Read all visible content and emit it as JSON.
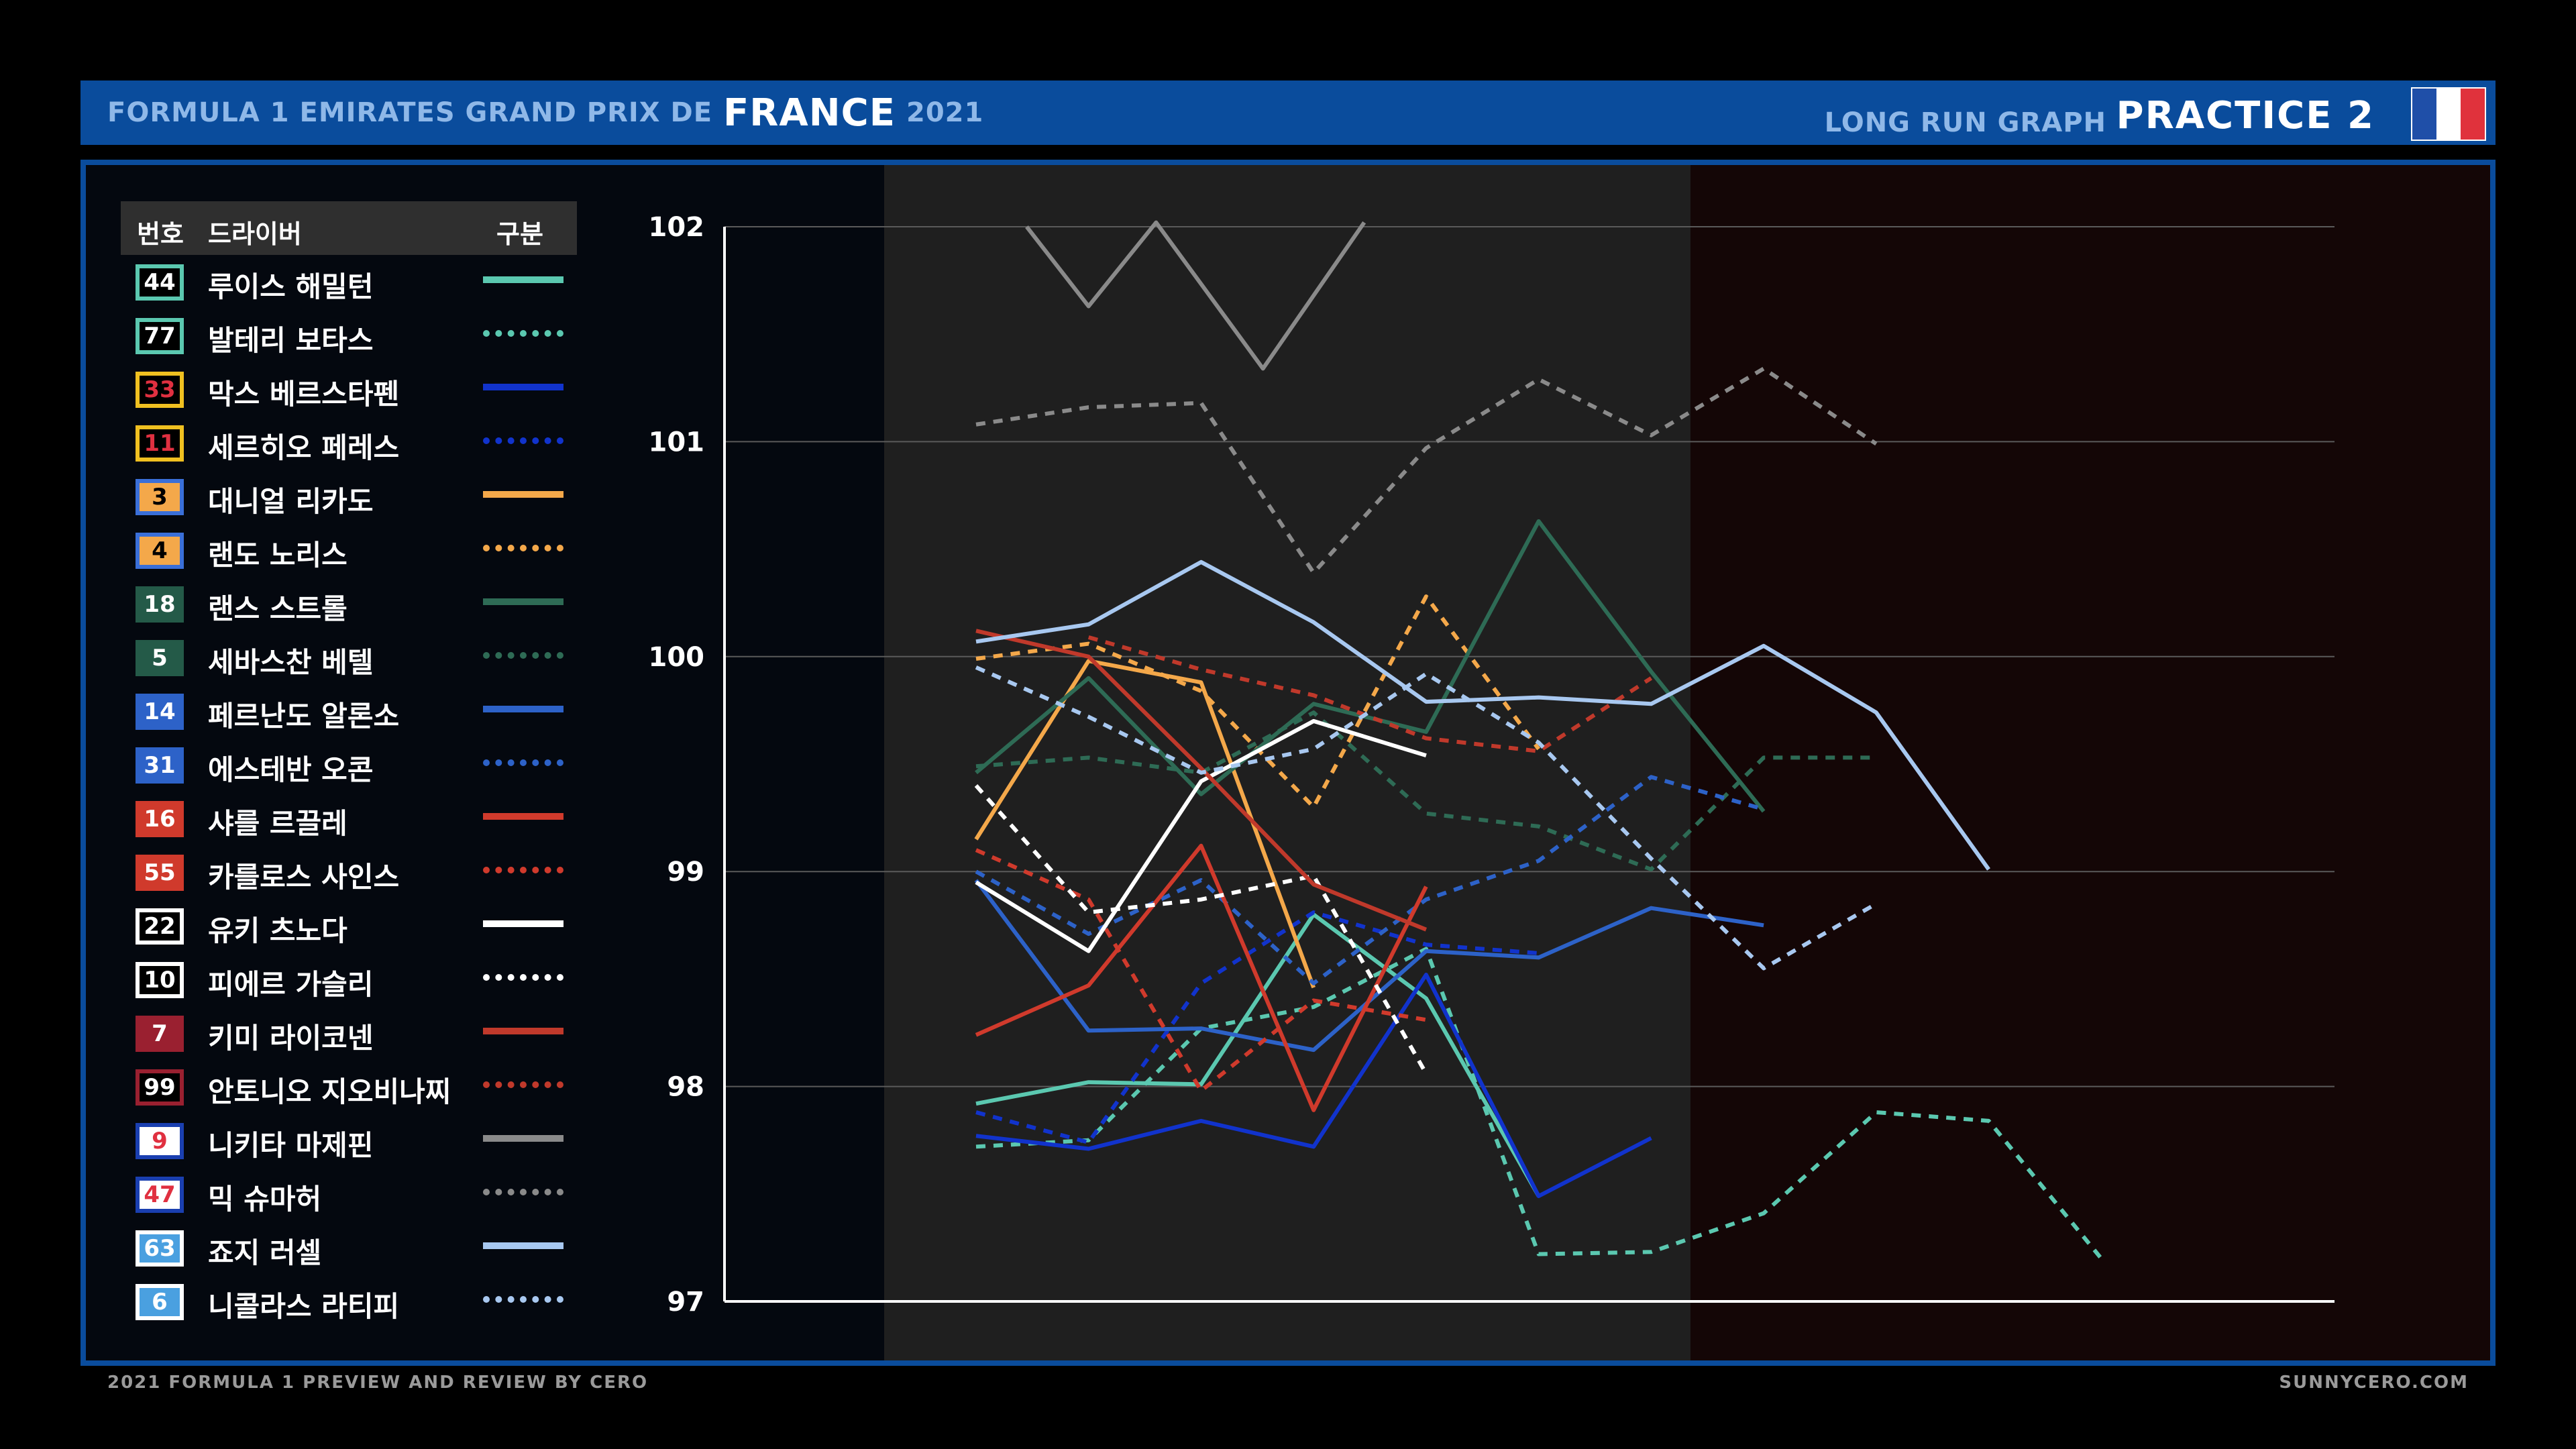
{
  "header": {
    "event_prefix": "FORMULA 1 EMIRATES GRAND PRIX DE",
    "event_main": "FRANCE",
    "event_year": "2021",
    "subtitle": "LONG RUN GRAPH",
    "session": "PRACTICE 2",
    "flag_colors": [
      "#1f4fa8",
      "#ffffff",
      "#e0323c"
    ]
  },
  "legend": {
    "col_number": "번호",
    "col_driver": "드라이버",
    "col_style": "구분"
  },
  "footer": {
    "left": "2021 FORMULA 1 PREVIEW AND REVIEW BY CERO",
    "right": "SUNNYCERO.COM"
  },
  "chart_data": {
    "type": "line",
    "title": "LONG RUN GRAPH",
    "xlabel": "",
    "ylabel": "",
    "ylim": [
      97,
      102
    ],
    "y_ticks": [
      "102",
      "101",
      "100",
      "99",
      "98",
      "97"
    ],
    "grid": true,
    "x_range": [
      1,
      12
    ],
    "series": [
      {
        "number": "44",
        "name": "루이스 해밀턴",
        "color": "#5bc8b0",
        "dashed": false,
        "badge_fill": "#000000",
        "badge_border": "#5bc8b0",
        "badge_text": "#ffffff",
        "x": [
          1,
          2,
          3,
          4,
          5,
          6
        ],
        "y": [
          97.92,
          98.02,
          98.01,
          98.8,
          98.41,
          97.49
        ]
      },
      {
        "number": "77",
        "name": "발테리 보타스",
        "color": "#5bc8b0",
        "dashed": true,
        "badge_fill": "#000000",
        "badge_border": "#5bc8b0",
        "badge_text": "#ffffff",
        "x": [
          1,
          2,
          3,
          4,
          5,
          6,
          7,
          8,
          9,
          10,
          11
        ],
        "y": [
          97.72,
          97.75,
          98.27,
          98.37,
          98.64,
          97.22,
          97.23,
          97.41,
          97.88,
          97.84,
          97.2
        ]
      },
      {
        "number": "33",
        "name": "막스 베르스타펜",
        "color": "#1133cc",
        "dashed": false,
        "badge_fill": "#000000",
        "badge_border": "#f0c020",
        "badge_text": "#e03040",
        "x": [
          1,
          2,
          3,
          4,
          5,
          6,
          7
        ],
        "y": [
          97.77,
          97.71,
          97.84,
          97.72,
          98.52,
          97.49,
          97.76
        ]
      },
      {
        "number": "11",
        "name": "세르히오 페레스",
        "color": "#1133cc",
        "dashed": true,
        "badge_fill": "#000000",
        "badge_border": "#f0c020",
        "badge_text": "#e03040",
        "x": [
          1,
          2,
          3,
          4,
          5,
          6
        ],
        "y": [
          97.88,
          97.74,
          98.48,
          98.81,
          98.66,
          98.62
        ]
      },
      {
        "number": "3",
        "name": "대니얼 리카도",
        "color": "#f4a84a",
        "dashed": false,
        "badge_fill": "#f4a84a",
        "badge_border": "#3a6fd8",
        "badge_text": "#000000",
        "x": [
          1,
          2,
          3,
          4
        ],
        "y": [
          99.15,
          99.98,
          99.88,
          98.46
        ]
      },
      {
        "number": "4",
        "name": "랜도 노리스",
        "color": "#f4a84a",
        "dashed": true,
        "badge_fill": "#f4a84a",
        "badge_border": "#3a6fd8",
        "badge_text": "#000000",
        "x": [
          1,
          2,
          3,
          4,
          5,
          6
        ],
        "y": [
          99.99,
          100.06,
          99.84,
          99.3,
          100.28,
          99.57
        ]
      },
      {
        "number": "18",
        "name": "랜스 스트롤",
        "color": "#2e6b55",
        "dashed": false,
        "badge_fill": "#245a48",
        "badge_border": "#245a48",
        "badge_text": "#ffffff",
        "x": [
          1,
          2,
          3,
          4,
          5,
          6,
          7,
          8
        ],
        "y": [
          99.46,
          99.9,
          99.36,
          99.78,
          99.65,
          100.63,
          99.93,
          99.28
        ]
      },
      {
        "number": "5",
        "name": "세바스찬 베텔",
        "color": "#2e6b55",
        "dashed": true,
        "badge_fill": "#245a48",
        "badge_border": "#245a48",
        "badge_text": "#ffffff",
        "x": [
          1,
          2,
          3,
          4,
          5,
          6,
          7,
          8,
          9
        ],
        "y": [
          99.49,
          99.53,
          99.46,
          99.74,
          99.27,
          99.21,
          99.01,
          99.53,
          99.53
        ]
      },
      {
        "number": "14",
        "name": "페르난도 알론소",
        "color": "#2d62c8",
        "dashed": false,
        "badge_fill": "#2d62c8",
        "badge_border": "#2d62c8",
        "badge_text": "#ffffff",
        "x": [
          1,
          2,
          3,
          4,
          5,
          6,
          7,
          8
        ],
        "y": [
          98.96,
          98.26,
          98.27,
          98.17,
          98.63,
          98.6,
          98.83,
          98.75
        ]
      },
      {
        "number": "31",
        "name": "에스테반 오콘",
        "color": "#2d62c8",
        "dashed": true,
        "badge_fill": "#2d62c8",
        "badge_border": "#2d62c8",
        "badge_text": "#ffffff",
        "x": [
          1,
          2,
          3,
          4,
          5,
          6,
          7,
          8
        ],
        "y": [
          99.0,
          98.71,
          98.96,
          98.48,
          98.87,
          99.05,
          99.44,
          99.29
        ]
      },
      {
        "number": "16",
        "name": "샤를 르끌레",
        "color": "#d03a2c",
        "dashed": false,
        "badge_fill": "#d03a2c",
        "badge_border": "#d03a2c",
        "badge_text": "#ffffff",
        "x": [
          1,
          2,
          3,
          4,
          5
        ],
        "y": [
          98.24,
          98.47,
          99.12,
          97.89,
          98.93
        ]
      },
      {
        "number": "55",
        "name": "카를로스 사인스",
        "color": "#d03a2c",
        "dashed": true,
        "badge_fill": "#d03a2c",
        "badge_border": "#d03a2c",
        "badge_text": "#ffffff",
        "x": [
          1,
          2,
          3,
          4,
          5,
          6,
          7
        ],
        "y": [
          99.1,
          98.87,
          97.98,
          98.4,
          98.31,
          null,
          null
        ]
      },
      {
        "number": "22",
        "name": "유키 츠노다",
        "color": "#ffffff",
        "dashed": false,
        "badge_fill": "#000000",
        "badge_border": "#ffffff",
        "badge_text": "#ffffff",
        "x": [
          1,
          2,
          3,
          4,
          5
        ],
        "y": [
          98.95,
          98.63,
          99.42,
          99.7,
          99.54
        ]
      },
      {
        "number": "10",
        "name": "피에르 가슬리",
        "color": "#ffffff",
        "dashed": true,
        "badge_fill": "#000000",
        "badge_border": "#ffffff",
        "badge_text": "#ffffff",
        "x": [
          1,
          2,
          3,
          4,
          5
        ],
        "y": [
          99.4,
          98.81,
          98.87,
          98.98,
          98.06
        ]
      },
      {
        "number": "7",
        "name": "키미 라이코넨",
        "color": "#c0392b",
        "dashed": false,
        "badge_fill": "#9a2030",
        "badge_border": "#9a2030",
        "badge_text": "#ffffff",
        "x": [
          1,
          2,
          3,
          4,
          5
        ],
        "y": [
          100.12,
          100.0,
          99.48,
          98.94,
          98.73
        ]
      },
      {
        "number": "99",
        "name": "안토니오 지오비나찌",
        "color": "#c0392b",
        "dashed": true,
        "badge_fill": "#000000",
        "badge_border": "#9a2030",
        "badge_text": "#ffffff",
        "x": [
          2,
          3,
          4,
          5,
          6,
          7
        ],
        "y": [
          100.09,
          99.94,
          99.82,
          99.62,
          99.56,
          99.9
        ]
      },
      {
        "number": "9",
        "name": "니키타 마제핀",
        "color": "#8a8a8a",
        "dashed": false,
        "badge_fill": "#ffffff",
        "badge_border": "#1a3fb0",
        "badge_text": "#e03040",
        "x": [
          1.45,
          2,
          2.6,
          3.55,
          4.45
        ],
        "y": [
          102.0,
          101.63,
          102.02,
          101.34,
          102.02
        ]
      },
      {
        "number": "47",
        "name": "믹 슈마허",
        "color": "#8a8a8a",
        "dashed": true,
        "badge_fill": "#ffffff",
        "badge_border": "#1a3fb0",
        "badge_text": "#e03040",
        "x": [
          1,
          2,
          3,
          4,
          5,
          6,
          7,
          8,
          9
        ],
        "y": [
          101.08,
          101.16,
          101.18,
          100.39,
          100.97,
          101.29,
          101.03,
          101.34,
          100.99
        ]
      },
      {
        "number": "63",
        "name": "죠지 러셀",
        "color": "#a8c8f0",
        "dashed": false,
        "badge_fill": "#4aa0e0",
        "badge_border": "#ffffff",
        "badge_text": "#ffffff",
        "x": [
          1,
          2,
          3,
          4,
          5,
          6,
          7,
          8,
          9,
          10
        ],
        "y": [
          100.07,
          100.15,
          100.44,
          100.16,
          99.79,
          99.81,
          99.78,
          100.05,
          99.74,
          99.01
        ]
      },
      {
        "number": "6",
        "name": "니콜라스 라티피",
        "color": "#a8c8f0",
        "dashed": true,
        "badge_fill": "#4aa0e0",
        "badge_border": "#ffffff",
        "badge_text": "#ffffff",
        "x": [
          1,
          2,
          3,
          4,
          5,
          6,
          7,
          8,
          9
        ],
        "y": [
          99.95,
          99.72,
          99.46,
          99.57,
          99.92,
          99.6,
          99.06,
          98.55,
          98.85
        ]
      }
    ]
  }
}
